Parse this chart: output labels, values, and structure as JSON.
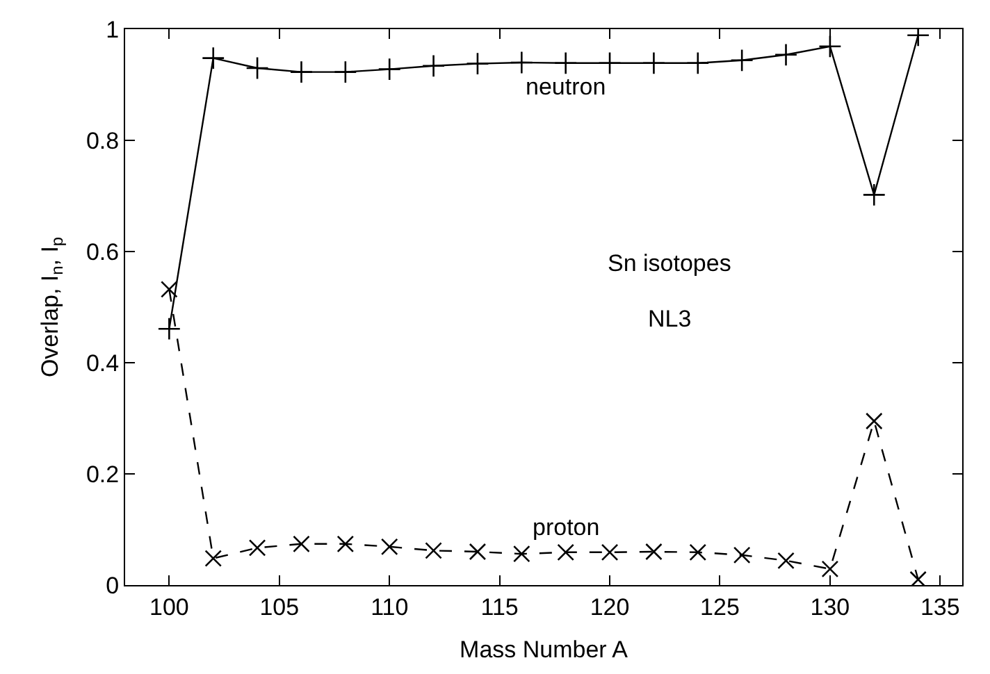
{
  "chart_data": {
    "type": "line",
    "xlabel": "Mass Number A",
    "ylabel": "Overlap, I$_{n}$, I$_{p}$",
    "x": [
      100,
      102,
      104,
      106,
      108,
      110,
      112,
      114,
      116,
      118,
      120,
      122,
      124,
      126,
      128,
      130,
      132,
      134
    ],
    "series": [
      {
        "name": "neutron",
        "color": "#000000",
        "marker": "cross",
        "line_style": "solid",
        "values": [
          0.461,
          0.948,
          0.93,
          0.923,
          0.923,
          0.928,
          0.934,
          0.938,
          0.94,
          0.939,
          0.939,
          0.939,
          0.939,
          0.944,
          0.954,
          0.969,
          0.702,
          0.989
        ]
      },
      {
        "name": "proton",
        "color": "#000000",
        "marker": "x",
        "line_style": "dashed",
        "values": [
          0.532,
          0.048,
          0.067,
          0.074,
          0.074,
          0.069,
          0.062,
          0.06,
          0.056,
          0.059,
          0.059,
          0.06,
          0.059,
          0.054,
          0.044,
          0.029,
          0.295,
          0.01
        ]
      }
    ],
    "annotations": [
      "Sn isotopes",
      "NL3"
    ],
    "xlim": [
      98,
      136
    ],
    "xticks": [
      100,
      105,
      110,
      115,
      120,
      125,
      130,
      135
    ],
    "ylim": [
      0,
      1
    ],
    "yticks": [
      0,
      0.2,
      0.4,
      0.6,
      0.8,
      1
    ],
    "legend": false
  }
}
